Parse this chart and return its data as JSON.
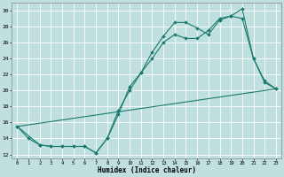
{
  "background_color": "#c0e0e0",
  "grid_color": "#ffffff",
  "line_color": "#1a7a6e",
  "xlabel": "Humidex (Indice chaleur)",
  "xlim": [
    -0.5,
    23.5
  ],
  "ylim": [
    11.5,
    31.0
  ],
  "xticks": [
    0,
    1,
    2,
    3,
    4,
    5,
    6,
    7,
    8,
    9,
    10,
    11,
    12,
    13,
    14,
    15,
    16,
    17,
    18,
    19,
    20,
    21,
    22,
    23
  ],
  "yticks": [
    12,
    14,
    16,
    18,
    20,
    22,
    24,
    26,
    28,
    30
  ],
  "line1_x": [
    0,
    1,
    2,
    3,
    4,
    5,
    6,
    7,
    8,
    9,
    10,
    11,
    12,
    13,
    14,
    15,
    16,
    17,
    18,
    19,
    20,
    21,
    22,
    23
  ],
  "line1_y": [
    15.5,
    14.0,
    13.2,
    13.0,
    13.0,
    13.0,
    13.0,
    12.2,
    14.0,
    17.0,
    20.5,
    22.2,
    24.8,
    26.8,
    28.5,
    28.5,
    27.8,
    27.0,
    28.8,
    29.3,
    30.2,
    24.0,
    21.2,
    20.2
  ],
  "line2_x": [
    0,
    23
  ],
  "line2_y": [
    15.5,
    20.2
  ],
  "line3_x": [
    0,
    2,
    3,
    4,
    5,
    6,
    7,
    8,
    9,
    10,
    11,
    12,
    13,
    14,
    15,
    16,
    17,
    18,
    19,
    20,
    21,
    22,
    23
  ],
  "line3_y": [
    15.5,
    13.2,
    13.0,
    13.0,
    13.0,
    13.0,
    12.2,
    14.0,
    17.5,
    20.0,
    22.2,
    24.0,
    26.0,
    27.0,
    26.5,
    26.5,
    27.5,
    29.0,
    29.3,
    29.0,
    24.0,
    21.0,
    20.2
  ]
}
